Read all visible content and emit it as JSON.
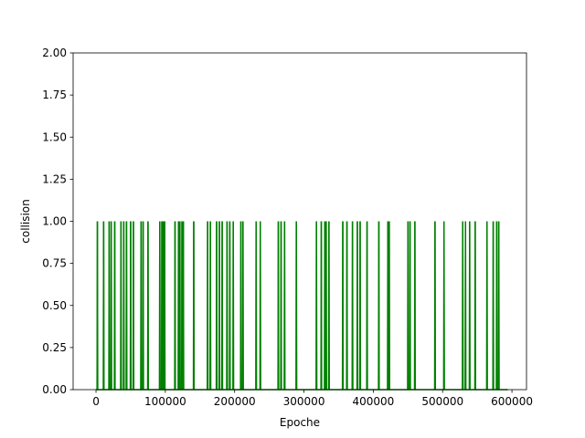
{
  "chart_data": {
    "type": "line",
    "xlabel": "Epoche",
    "ylabel": "collision",
    "xlim": [
      -33000,
      621000
    ],
    "ylim": [
      0,
      2
    ],
    "x_ticks": [
      0,
      100000,
      200000,
      300000,
      400000,
      500000,
      600000
    ],
    "x_tick_labels": [
      "0",
      "100000",
      "200000",
      "300000",
      "400000",
      "500000",
      "600000"
    ],
    "y_ticks": [
      0,
      0.25,
      0.5,
      0.75,
      1.0,
      1.25,
      1.5,
      1.75,
      2.0
    ],
    "y_tick_labels": [
      "0.00",
      "0.25",
      "0.50",
      "0.75",
      "1.00",
      "1.25",
      "1.50",
      "1.75",
      "2.00"
    ],
    "grid": false,
    "series_color": "#008000",
    "baseline_value": 0,
    "x_range_data": [
      0,
      594000
    ],
    "series": [
      {
        "note_events_are_x_positions_where_collision_equals_1": true,
        "baseline": 0,
        "peak": 1,
        "events": [
          2000,
          11000,
          19000,
          22000,
          27000,
          36000,
          40000,
          44000,
          50000,
          54000,
          65000,
          68000,
          75000,
          92000,
          95000,
          97000,
          99000,
          114000,
          119000,
          121000,
          124000,
          126000,
          141000,
          161000,
          165000,
          174000,
          178000,
          182000,
          189000,
          193000,
          198000,
          209000,
          212000,
          231000,
          237000,
          263000,
          267000,
          272000,
          289000,
          318000,
          325000,
          330000,
          332000,
          336000,
          356000,
          362000,
          370000,
          377000,
          381000,
          391000,
          408000,
          421000,
          423000,
          450000,
          453000,
          460000,
          489000,
          502000,
          529000,
          533000,
          539000,
          547000,
          564000,
          573000,
          578000,
          581000
        ]
      }
    ]
  }
}
